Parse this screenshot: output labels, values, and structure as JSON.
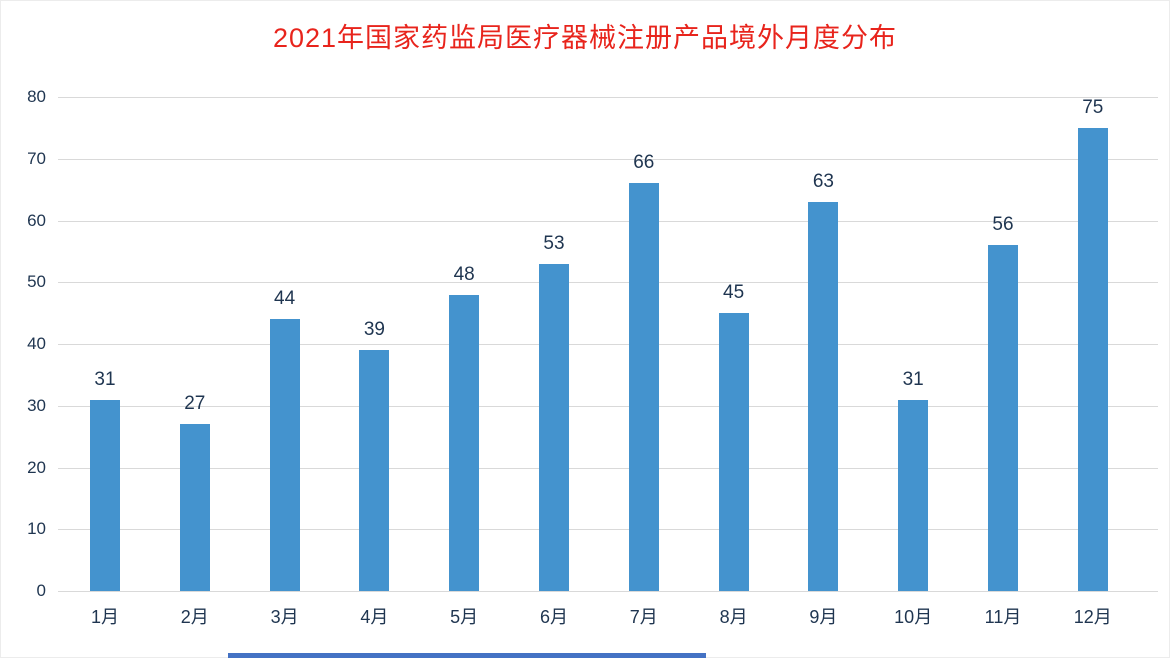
{
  "chart_data": {
    "type": "bar",
    "title": "2021年国家药监局医疗器械注册产品境外月度分布",
    "categories": [
      "1月",
      "2月",
      "3月",
      "4月",
      "5月",
      "6月",
      "7月",
      "8月",
      "9月",
      "10月",
      "11月",
      "12月"
    ],
    "values": [
      31,
      27,
      44,
      39,
      48,
      53,
      66,
      45,
      63,
      31,
      56,
      75
    ],
    "xlabel": "",
    "ylabel": "",
    "ylim": [
      0,
      80
    ],
    "yticks": [
      0,
      10,
      20,
      30,
      40,
      50,
      60,
      70,
      80
    ],
    "grid": true,
    "legend": false,
    "colors": {
      "bar": "#4493ce",
      "title": "#e8241c",
      "label": "#1f3550",
      "grid": "#d9d9d9",
      "background": "#ffffff"
    }
  },
  "decor": {
    "bottom_strip_color": "#4472c4"
  }
}
